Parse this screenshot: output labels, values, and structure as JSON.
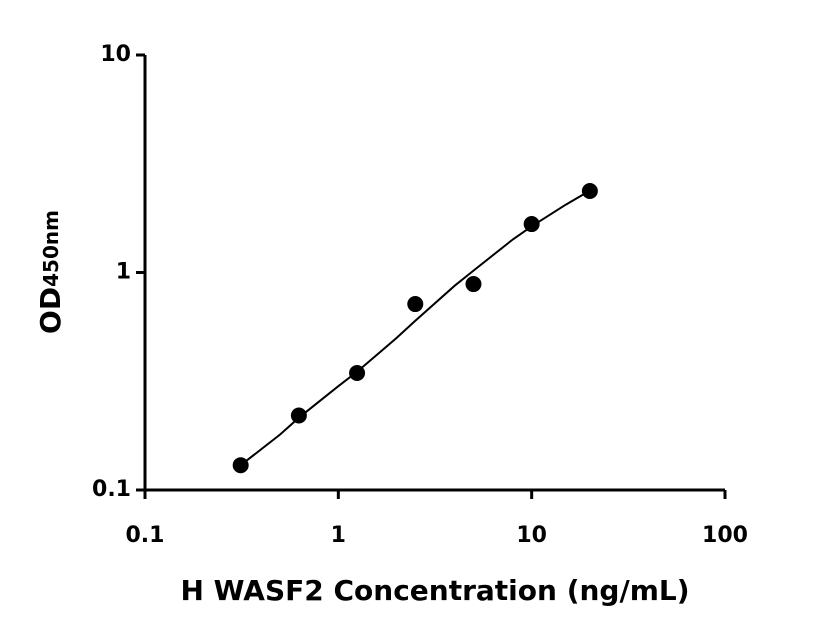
{
  "chart_data": {
    "type": "scatter",
    "x_label": "H WASF2 Concentration (ng/mL)",
    "y_label": "OD",
    "y_label_sub": "450nm",
    "x": [
      0.3125,
      0.625,
      1.25,
      2.5,
      5,
      10,
      20
    ],
    "values": [
      0.13,
      0.22,
      0.345,
      0.716,
      0.885,
      1.67,
      2.37
    ],
    "color": "#000000",
    "fit": {
      "x": [
        0.3125,
        0.5,
        0.625,
        1,
        1.25,
        2,
        2.5,
        4,
        5,
        8,
        10,
        15,
        20
      ],
      "y": [
        0.13,
        0.18,
        0.215,
        0.3,
        0.35,
        0.5,
        0.6,
        0.87,
        1.02,
        1.42,
        1.63,
        2.05,
        2.38
      ]
    },
    "xlog": true,
    "ylog": true,
    "xlim": [
      0.1,
      100
    ],
    "ylim": [
      0.1,
      10
    ],
    "xticks": [
      0.1,
      1,
      10,
      100
    ],
    "yticks": [
      0.1,
      1,
      10
    ]
  }
}
